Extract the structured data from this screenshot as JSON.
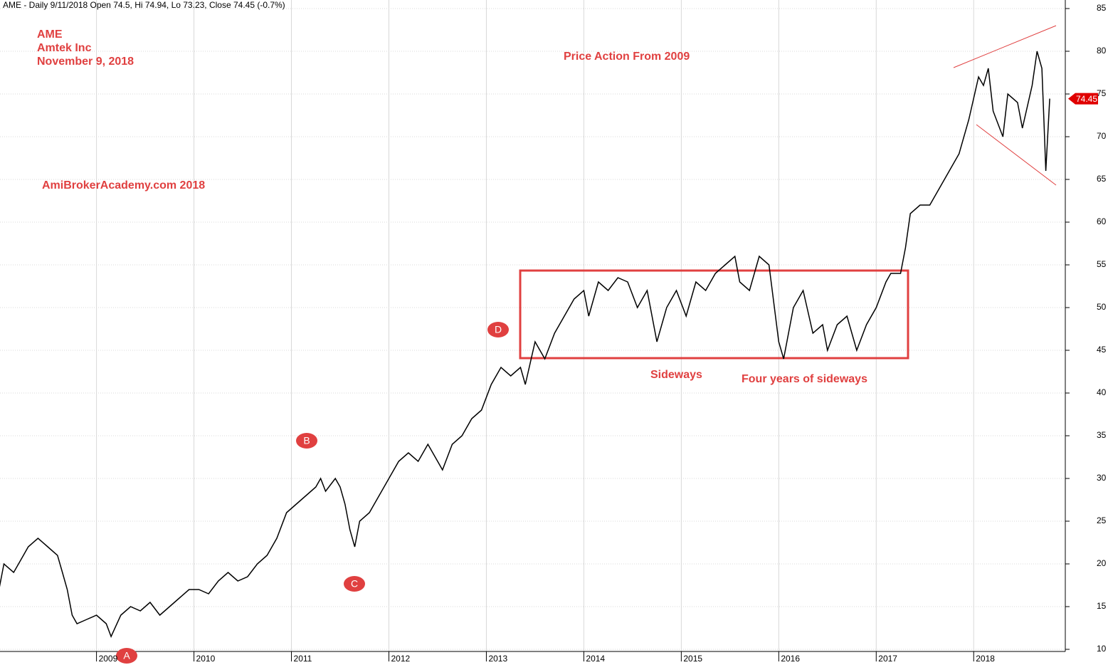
{
  "chart_data": {
    "type": "line",
    "title": "AME - Daily 9/11/2018 Open 74.5, Hi 74.94, Lo 73.23, Close 74.45 (-0.7%)",
    "annotations": {
      "ticker": "AME",
      "company": "Amtek Inc",
      "date": "November 9, 2018",
      "heading": "Price Action From 2009",
      "source": "AmiBrokerAcademy.com  2018",
      "sideways": "Sideways",
      "four_years": "Four years of sideways",
      "a": "A",
      "b": "B",
      "c": "C",
      "d": "D",
      "last_price": "74.45"
    },
    "series": [
      {
        "name": "AME",
        "color": "#000000",
        "x": [
          2008.0,
          2008.05,
          2008.15,
          2008.25,
          2008.3,
          2008.4,
          2008.5,
          2008.6,
          2008.65,
          2008.7,
          2008.75,
          2008.8,
          2008.9,
          2009.0,
          2009.1,
          2009.15,
          2009.25,
          2009.35,
          2009.45,
          2009.55,
          2009.65,
          2009.75,
          2009.85,
          2009.95,
          2010.05,
          2010.15,
          2010.25,
          2010.35,
          2010.45,
          2010.55,
          2010.65,
          2010.75,
          2010.85,
          2010.95,
          2011.05,
          2011.15,
          2011.25,
          2011.3,
          2011.35,
          2011.45,
          2011.5,
          2011.55,
          2011.6,
          2011.65,
          2011.7,
          2011.8,
          2011.9,
          2012.0,
          2012.1,
          2012.2,
          2012.3,
          2012.4,
          2012.5,
          2012.55,
          2012.65,
          2012.75,
          2012.85,
          2012.95,
          2013.05,
          2013.15,
          2013.25,
          2013.35,
          2013.4,
          2013.5,
          2013.6,
          2013.7,
          2013.8,
          2013.9,
          2014.0,
          2014.05,
          2014.15,
          2014.25,
          2014.35,
          2014.45,
          2014.55,
          2014.65,
          2014.75,
          2014.85,
          2014.95,
          2015.05,
          2015.15,
          2015.25,
          2015.35,
          2015.45,
          2015.55,
          2015.6,
          2015.7,
          2015.8,
          2015.9,
          2016.0,
          2016.05,
          2016.15,
          2016.25,
          2016.35,
          2016.45,
          2016.5,
          2016.6,
          2016.7,
          2016.8,
          2016.9,
          2017.0,
          2017.1,
          2017.15,
          2017.25,
          2017.3,
          2017.35,
          2017.45,
          2017.55,
          2017.65,
          2017.75,
          2017.85,
          2017.95,
          2018.05,
          2018.1,
          2018.15,
          2018.2,
          2018.3,
          2018.35,
          2018.45,
          2018.5,
          2018.6,
          2018.65,
          2018.7,
          2018.72,
          2018.74,
          2018.78
        ],
        "values": [
          17,
          20,
          19,
          21,
          22,
          23,
          22,
          21,
          19,
          17,
          14,
          13,
          13.5,
          14,
          13,
          11.5,
          14,
          15,
          14.5,
          15.5,
          14,
          15,
          16,
          17,
          17,
          16.5,
          18,
          19,
          18,
          18.5,
          20,
          21,
          23,
          26,
          27,
          28,
          29,
          30,
          28.5,
          30,
          29,
          27,
          24,
          22,
          25,
          26,
          28,
          30,
          32,
          33,
          32,
          34,
          32,
          31,
          34,
          35,
          37,
          38,
          41,
          43,
          42,
          43,
          41,
          46,
          44,
          47,
          49,
          51,
          52,
          49,
          53,
          52,
          53.5,
          53,
          50,
          52,
          46,
          50,
          52,
          49,
          53,
          52,
          54,
          55,
          56,
          53,
          52,
          56,
          55,
          46,
          44,
          50,
          52,
          47,
          48,
          45,
          48,
          49,
          45,
          48,
          50,
          53,
          54,
          54,
          57,
          61,
          62,
          62,
          64,
          66,
          68,
          72,
          77,
          76,
          78,
          73,
          70,
          75,
          74,
          71,
          76,
          80,
          78,
          72,
          66,
          74.45
        ]
      }
    ],
    "xlim": [
      2008.01,
      2018.94
    ],
    "xticks": [
      2009,
      2010,
      2011,
      2012,
      2013,
      2014,
      2015,
      2016,
      2017,
      2018
    ],
    "ylim": [
      9.75,
      86
    ],
    "yticks": [
      10,
      15,
      20,
      25,
      30,
      35,
      40,
      45,
      50,
      55,
      60,
      65,
      70,
      75,
      80,
      85
    ],
    "grid": true
  }
}
